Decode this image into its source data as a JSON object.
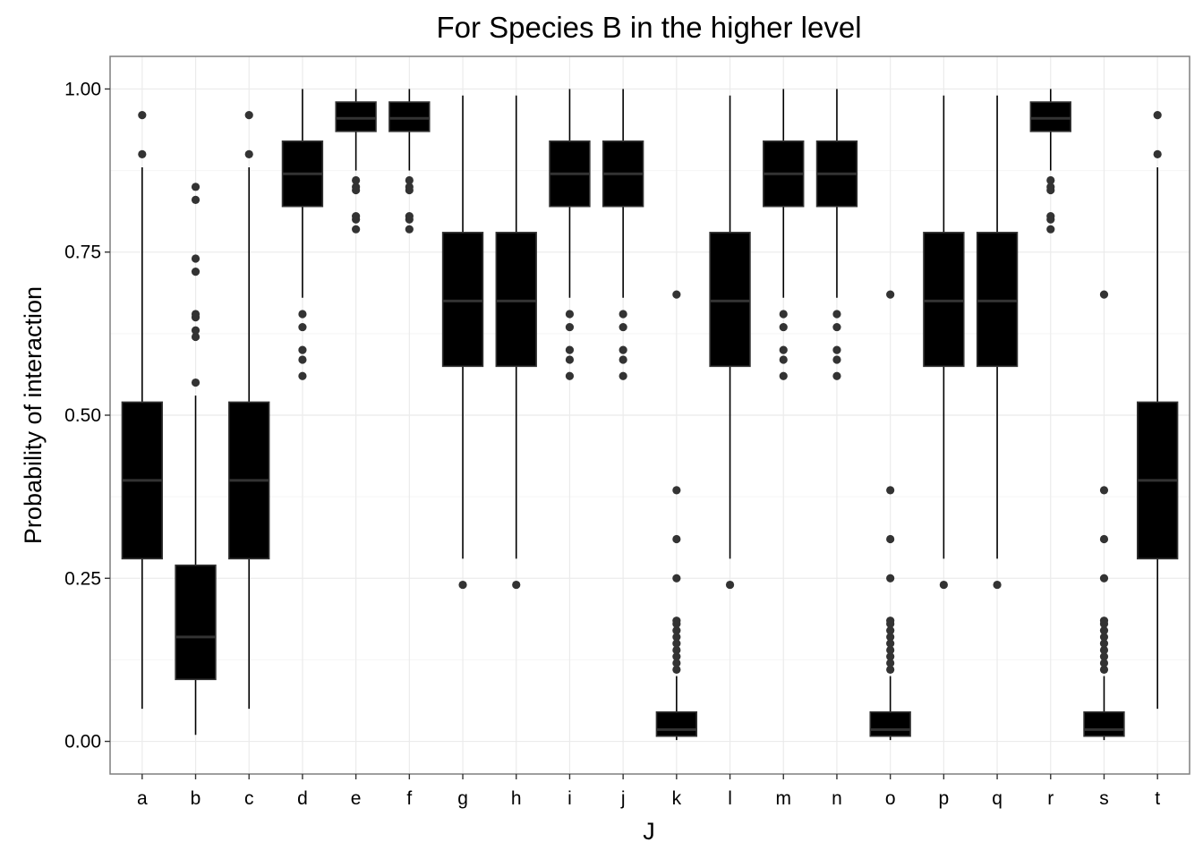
{
  "chart_data": {
    "type": "boxplot",
    "title": "For Species B in the higher level",
    "xlabel": "J",
    "ylabel": "Probability of interaction",
    "ylim": [
      -0.05,
      1.05
    ],
    "yticks": [
      0.0,
      0.25,
      0.5,
      0.75,
      1.0
    ],
    "ytick_labels": [
      "0.00",
      "0.25",
      "0.50",
      "0.75",
      "1.00"
    ],
    "grid": true,
    "colors": {
      "box_fill": "#000000",
      "median": "#333333",
      "outlier": "#333333",
      "grid_major": "#ebebeb",
      "grid_minor": "#f5f5f5",
      "panel_border": "#7f7f7f"
    },
    "categories": [
      "a",
      "b",
      "c",
      "d",
      "e",
      "f",
      "g",
      "h",
      "i",
      "j",
      "k",
      "l",
      "m",
      "n",
      "o",
      "p",
      "q",
      "r",
      "s",
      "t"
    ],
    "boxes": [
      {
        "label": "a",
        "min": 0.05,
        "q1": 0.28,
        "median": 0.4,
        "q3": 0.52,
        "max": 0.88,
        "outliers": [
          0.9,
          0.96
        ]
      },
      {
        "label": "b",
        "min": 0.01,
        "q1": 0.095,
        "median": 0.16,
        "q3": 0.27,
        "max": 0.53,
        "outliers": [
          0.55,
          0.62,
          0.63,
          0.65,
          0.655,
          0.72,
          0.74,
          0.83,
          0.85
        ]
      },
      {
        "label": "c",
        "min": 0.05,
        "q1": 0.28,
        "median": 0.4,
        "q3": 0.52,
        "max": 0.88,
        "outliers": [
          0.9,
          0.96
        ]
      },
      {
        "label": "d",
        "min": 0.68,
        "q1": 0.82,
        "median": 0.87,
        "q3": 0.92,
        "max": 1.0,
        "outliers": [
          0.56,
          0.585,
          0.6,
          0.635,
          0.655
        ]
      },
      {
        "label": "e",
        "min": 0.875,
        "q1": 0.935,
        "median": 0.955,
        "q3": 0.98,
        "max": 1.0,
        "outliers": [
          0.785,
          0.8,
          0.805,
          0.845,
          0.85,
          0.86
        ]
      },
      {
        "label": "f",
        "min": 0.875,
        "q1": 0.935,
        "median": 0.955,
        "q3": 0.98,
        "max": 1.0,
        "outliers": [
          0.785,
          0.8,
          0.805,
          0.845,
          0.85,
          0.86
        ]
      },
      {
        "label": "g",
        "min": 0.28,
        "q1": 0.575,
        "median": 0.675,
        "q3": 0.78,
        "max": 0.99,
        "outliers": [
          0.24
        ]
      },
      {
        "label": "h",
        "min": 0.28,
        "q1": 0.575,
        "median": 0.675,
        "q3": 0.78,
        "max": 0.99,
        "outliers": [
          0.24
        ]
      },
      {
        "label": "i",
        "min": 0.68,
        "q1": 0.82,
        "median": 0.87,
        "q3": 0.92,
        "max": 1.0,
        "outliers": [
          0.56,
          0.585,
          0.6,
          0.635,
          0.655
        ]
      },
      {
        "label": "j",
        "min": 0.68,
        "q1": 0.82,
        "median": 0.87,
        "q3": 0.92,
        "max": 1.0,
        "outliers": [
          0.56,
          0.585,
          0.6,
          0.635,
          0.655
        ]
      },
      {
        "label": "k",
        "min": 0.002,
        "q1": 0.008,
        "median": 0.018,
        "q3": 0.045,
        "max": 0.1,
        "outliers": [
          0.11,
          0.12,
          0.13,
          0.14,
          0.15,
          0.16,
          0.17,
          0.18,
          0.185,
          0.25,
          0.31,
          0.385,
          0.685
        ]
      },
      {
        "label": "l",
        "min": 0.28,
        "q1": 0.575,
        "median": 0.675,
        "q3": 0.78,
        "max": 0.99,
        "outliers": [
          0.24
        ]
      },
      {
        "label": "m",
        "min": 0.68,
        "q1": 0.82,
        "median": 0.87,
        "q3": 0.92,
        "max": 1.0,
        "outliers": [
          0.56,
          0.585,
          0.6,
          0.635,
          0.655
        ]
      },
      {
        "label": "n",
        "min": 0.68,
        "q1": 0.82,
        "median": 0.87,
        "q3": 0.92,
        "max": 1.0,
        "outliers": [
          0.56,
          0.585,
          0.6,
          0.635,
          0.655
        ]
      },
      {
        "label": "o",
        "min": 0.002,
        "q1": 0.008,
        "median": 0.018,
        "q3": 0.045,
        "max": 0.1,
        "outliers": [
          0.11,
          0.12,
          0.13,
          0.14,
          0.15,
          0.16,
          0.17,
          0.18,
          0.185,
          0.25,
          0.31,
          0.385,
          0.685
        ]
      },
      {
        "label": "p",
        "min": 0.28,
        "q1": 0.575,
        "median": 0.675,
        "q3": 0.78,
        "max": 0.99,
        "outliers": [
          0.24
        ]
      },
      {
        "label": "q",
        "min": 0.28,
        "q1": 0.575,
        "median": 0.675,
        "q3": 0.78,
        "max": 0.99,
        "outliers": [
          0.24
        ]
      },
      {
        "label": "r",
        "min": 0.875,
        "q1": 0.935,
        "median": 0.955,
        "q3": 0.98,
        "max": 1.0,
        "outliers": [
          0.785,
          0.8,
          0.805,
          0.845,
          0.85,
          0.86
        ]
      },
      {
        "label": "s",
        "min": 0.002,
        "q1": 0.008,
        "median": 0.018,
        "q3": 0.045,
        "max": 0.1,
        "outliers": [
          0.11,
          0.12,
          0.13,
          0.14,
          0.15,
          0.16,
          0.17,
          0.18,
          0.185,
          0.25,
          0.31,
          0.385,
          0.685
        ]
      },
      {
        "label": "t",
        "min": 0.05,
        "q1": 0.28,
        "median": 0.4,
        "q3": 0.52,
        "max": 0.88,
        "outliers": [
          0.9,
          0.96
        ]
      }
    ]
  }
}
